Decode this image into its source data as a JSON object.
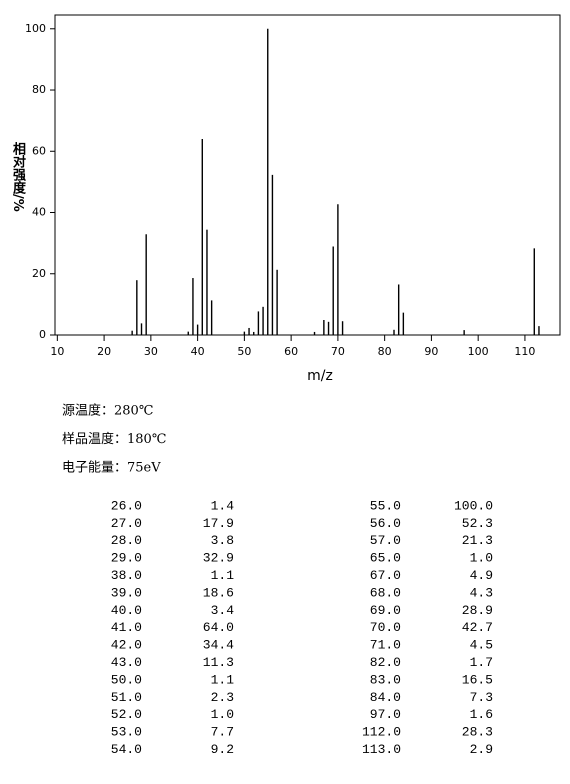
{
  "chart_data": {
    "type": "bar",
    "xlabel": "m/z",
    "ylabel": "相对强度/%",
    "x": [
      26,
      27,
      28,
      29,
      38,
      39,
      40,
      41,
      42,
      43,
      50,
      51,
      52,
      53,
      54,
      55,
      56,
      57,
      65,
      67,
      68,
      69,
      70,
      71,
      82,
      83,
      84,
      97,
      112,
      113
    ],
    "x_labels": [
      "26.0",
      "27.0",
      "28.0",
      "29.0",
      "38.0",
      "39.0",
      "40.0",
      "41.0",
      "42.0",
      "43.0",
      "50.0",
      "51.0",
      "52.0",
      "53.0",
      "54.0",
      "55.0",
      "56.0",
      "57.0",
      "65.0",
      "67.0",
      "68.0",
      "69.0",
      "70.0",
      "71.0",
      "82.0",
      "83.0",
      "84.0",
      "97.0",
      "112.0",
      "113.0"
    ],
    "values": [
      1.4,
      17.9,
      3.8,
      32.9,
      1.1,
      18.6,
      3.4,
      64.0,
      34.4,
      11.3,
      1.1,
      2.3,
      1.0,
      7.7,
      9.2,
      100.0,
      52.3,
      21.3,
      1.0,
      4.9,
      4.3,
      28.9,
      42.7,
      4.5,
      1.7,
      16.5,
      7.3,
      1.6,
      28.3,
      2.9
    ],
    "value_labels": [
      "1.4",
      "17.9",
      "3.8",
      "32.9",
      "1.1",
      "18.6",
      "3.4",
      "64.0",
      "34.4",
      "11.3",
      "1.1",
      "2.3",
      "1.0",
      "7.7",
      "9.2",
      "100.0",
      "52.3",
      "21.3",
      "1.0",
      "4.9",
      "4.3",
      "28.9",
      "42.7",
      "4.5",
      "1.7",
      "16.5",
      "7.3",
      "1.6",
      "28.3",
      "2.9"
    ],
    "color": "#000000",
    "xlim": [
      9.5,
      117.5
    ],
    "xticks": [
      10,
      20,
      30,
      40,
      50,
      60,
      70,
      80,
      90,
      100,
      110
    ],
    "ylim": [
      0,
      104.5
    ],
    "yticks": [
      0,
      20,
      40,
      60,
      80,
      100
    ]
  },
  "info": [
    "源温度：280℃",
    "样品温度：180℃",
    "电子能量：75eV"
  ]
}
